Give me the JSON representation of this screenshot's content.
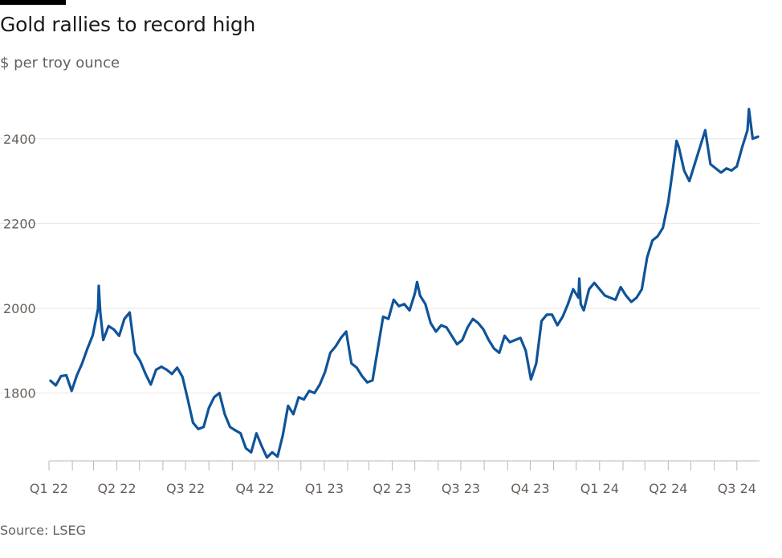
{
  "title": "Gold rallies to record high",
  "subtitle": "$ per troy ounce",
  "source": "Source: LSEG",
  "colors": {
    "line": "#0f5499",
    "grid": "#e9e6e3",
    "axis": "#bdb7b2",
    "text": "#66605c"
  },
  "chart_data": {
    "type": "line",
    "title": "Gold rallies to record high",
    "ylabel": "$ per troy ounce",
    "x_type": "date",
    "ylim": [
      1640,
      2500
    ],
    "yticks": [
      1800,
      2000,
      2200,
      2400
    ],
    "grid": "horizontal",
    "x_tick_labels": [
      "Q1 22",
      "Q2 22",
      "Q3 22",
      "Q4 22",
      "Q1 23",
      "Q2 23",
      "Q3 23",
      "Q4 23",
      "Q1 24",
      "Q2 24",
      "Q3 24"
    ],
    "x_tick_dates": [
      "2022-01-01",
      "2022-04-01",
      "2022-07-01",
      "2022-10-01",
      "2023-01-01",
      "2023-04-01",
      "2023-07-01",
      "2023-10-01",
      "2024-01-01",
      "2024-04-01",
      "2024-07-01"
    ],
    "xlim": [
      "2022-01-01",
      "2024-07-31"
    ],
    "series": [
      {
        "points": [
          [
            "2022-01-03",
            1829
          ],
          [
            "2022-01-10",
            1818
          ],
          [
            "2022-01-17",
            1840
          ],
          [
            "2022-01-24",
            1842
          ],
          [
            "2022-01-31",
            1805
          ],
          [
            "2022-02-07",
            1842
          ],
          [
            "2022-02-14",
            1870
          ],
          [
            "2022-02-21",
            1905
          ],
          [
            "2022-02-28",
            1936
          ],
          [
            "2022-03-07",
            1999
          ],
          [
            "2022-03-08",
            2053
          ],
          [
            "2022-03-10",
            1990
          ],
          [
            "2022-03-14",
            1925
          ],
          [
            "2022-03-21",
            1958
          ],
          [
            "2022-03-28",
            1950
          ],
          [
            "2022-04-04",
            1935
          ],
          [
            "2022-04-11",
            1975
          ],
          [
            "2022-04-18",
            1990
          ],
          [
            "2022-04-25",
            1895
          ],
          [
            "2022-05-02",
            1875
          ],
          [
            "2022-05-09",
            1845
          ],
          [
            "2022-05-16",
            1820
          ],
          [
            "2022-05-23",
            1855
          ],
          [
            "2022-05-30",
            1862
          ],
          [
            "2022-06-06",
            1855
          ],
          [
            "2022-06-13",
            1845
          ],
          [
            "2022-06-20",
            1860
          ],
          [
            "2022-06-27",
            1838
          ],
          [
            "2022-07-04",
            1785
          ],
          [
            "2022-07-11",
            1730
          ],
          [
            "2022-07-18",
            1715
          ],
          [
            "2022-07-25",
            1720
          ],
          [
            "2022-08-01",
            1765
          ],
          [
            "2022-08-08",
            1790
          ],
          [
            "2022-08-15",
            1800
          ],
          [
            "2022-08-22",
            1750
          ],
          [
            "2022-08-29",
            1720
          ],
          [
            "2022-09-05",
            1712
          ],
          [
            "2022-09-12",
            1705
          ],
          [
            "2022-09-19",
            1670
          ],
          [
            "2022-09-26",
            1660
          ],
          [
            "2022-10-03",
            1705
          ],
          [
            "2022-10-10",
            1675
          ],
          [
            "2022-10-17",
            1648
          ],
          [
            "2022-10-24",
            1660
          ],
          [
            "2022-10-31",
            1650
          ],
          [
            "2022-11-07",
            1700
          ],
          [
            "2022-11-14",
            1770
          ],
          [
            "2022-11-21",
            1750
          ],
          [
            "2022-11-28",
            1790
          ],
          [
            "2022-12-05",
            1785
          ],
          [
            "2022-12-12",
            1805
          ],
          [
            "2022-12-19",
            1800
          ],
          [
            "2022-12-26",
            1820
          ],
          [
            "2023-01-02",
            1850
          ],
          [
            "2023-01-09",
            1895
          ],
          [
            "2023-01-16",
            1910
          ],
          [
            "2023-01-23",
            1930
          ],
          [
            "2023-01-30",
            1945
          ],
          [
            "2023-02-06",
            1870
          ],
          [
            "2023-02-13",
            1860
          ],
          [
            "2023-02-20",
            1840
          ],
          [
            "2023-02-27",
            1825
          ],
          [
            "2023-03-06",
            1830
          ],
          [
            "2023-03-13",
            1905
          ],
          [
            "2023-03-20",
            1980
          ],
          [
            "2023-03-27",
            1975
          ],
          [
            "2023-04-03",
            2020
          ],
          [
            "2023-04-10",
            2005
          ],
          [
            "2023-04-17",
            2010
          ],
          [
            "2023-04-24",
            1995
          ],
          [
            "2023-05-01",
            2035
          ],
          [
            "2023-05-04",
            2062
          ],
          [
            "2023-05-08",
            2030
          ],
          [
            "2023-05-15",
            2010
          ],
          [
            "2023-05-22",
            1965
          ],
          [
            "2023-05-29",
            1945
          ],
          [
            "2023-06-05",
            1960
          ],
          [
            "2023-06-12",
            1955
          ],
          [
            "2023-06-19",
            1935
          ],
          [
            "2023-06-26",
            1915
          ],
          [
            "2023-07-03",
            1925
          ],
          [
            "2023-07-10",
            1955
          ],
          [
            "2023-07-17",
            1975
          ],
          [
            "2023-07-24",
            1965
          ],
          [
            "2023-07-31",
            1950
          ],
          [
            "2023-08-07",
            1925
          ],
          [
            "2023-08-14",
            1905
          ],
          [
            "2023-08-21",
            1895
          ],
          [
            "2023-08-28",
            1935
          ],
          [
            "2023-09-04",
            1920
          ],
          [
            "2023-09-11",
            1925
          ],
          [
            "2023-09-18",
            1930
          ],
          [
            "2023-09-25",
            1900
          ],
          [
            "2023-10-02",
            1832
          ],
          [
            "2023-10-09",
            1870
          ],
          [
            "2023-10-16",
            1970
          ],
          [
            "2023-10-23",
            1985
          ],
          [
            "2023-10-30",
            1985
          ],
          [
            "2023-11-06",
            1960
          ],
          [
            "2023-11-13",
            1980
          ],
          [
            "2023-11-20",
            2010
          ],
          [
            "2023-11-27",
            2045
          ],
          [
            "2023-12-04",
            2025
          ],
          [
            "2023-12-05",
            2070
          ],
          [
            "2023-12-07",
            2010
          ],
          [
            "2023-12-11",
            1995
          ],
          [
            "2023-12-18",
            2045
          ],
          [
            "2023-12-25",
            2060
          ],
          [
            "2024-01-01",
            2045
          ],
          [
            "2024-01-08",
            2030
          ],
          [
            "2024-01-15",
            2025
          ],
          [
            "2024-01-22",
            2020
          ],
          [
            "2024-01-29",
            2050
          ],
          [
            "2024-02-05",
            2030
          ],
          [
            "2024-02-12",
            2015
          ],
          [
            "2024-02-19",
            2025
          ],
          [
            "2024-02-26",
            2045
          ],
          [
            "2024-03-04",
            2120
          ],
          [
            "2024-03-11",
            2160
          ],
          [
            "2024-03-18",
            2170
          ],
          [
            "2024-03-25",
            2190
          ],
          [
            "2024-04-01",
            2250
          ],
          [
            "2024-04-08",
            2340
          ],
          [
            "2024-04-12",
            2395
          ],
          [
            "2024-04-15",
            2380
          ],
          [
            "2024-04-22",
            2325
          ],
          [
            "2024-04-29",
            2300
          ],
          [
            "2024-05-06",
            2340
          ],
          [
            "2024-05-13",
            2380
          ],
          [
            "2024-05-20",
            2420
          ],
          [
            "2024-05-27",
            2340
          ],
          [
            "2024-06-03",
            2330
          ],
          [
            "2024-06-10",
            2320
          ],
          [
            "2024-06-17",
            2330
          ],
          [
            "2024-06-24",
            2325
          ],
          [
            "2024-07-01",
            2335
          ],
          [
            "2024-07-08",
            2380
          ],
          [
            "2024-07-15",
            2420
          ],
          [
            "2024-07-17",
            2470
          ],
          [
            "2024-07-22",
            2400
          ],
          [
            "2024-07-29",
            2405
          ]
        ]
      }
    ]
  }
}
